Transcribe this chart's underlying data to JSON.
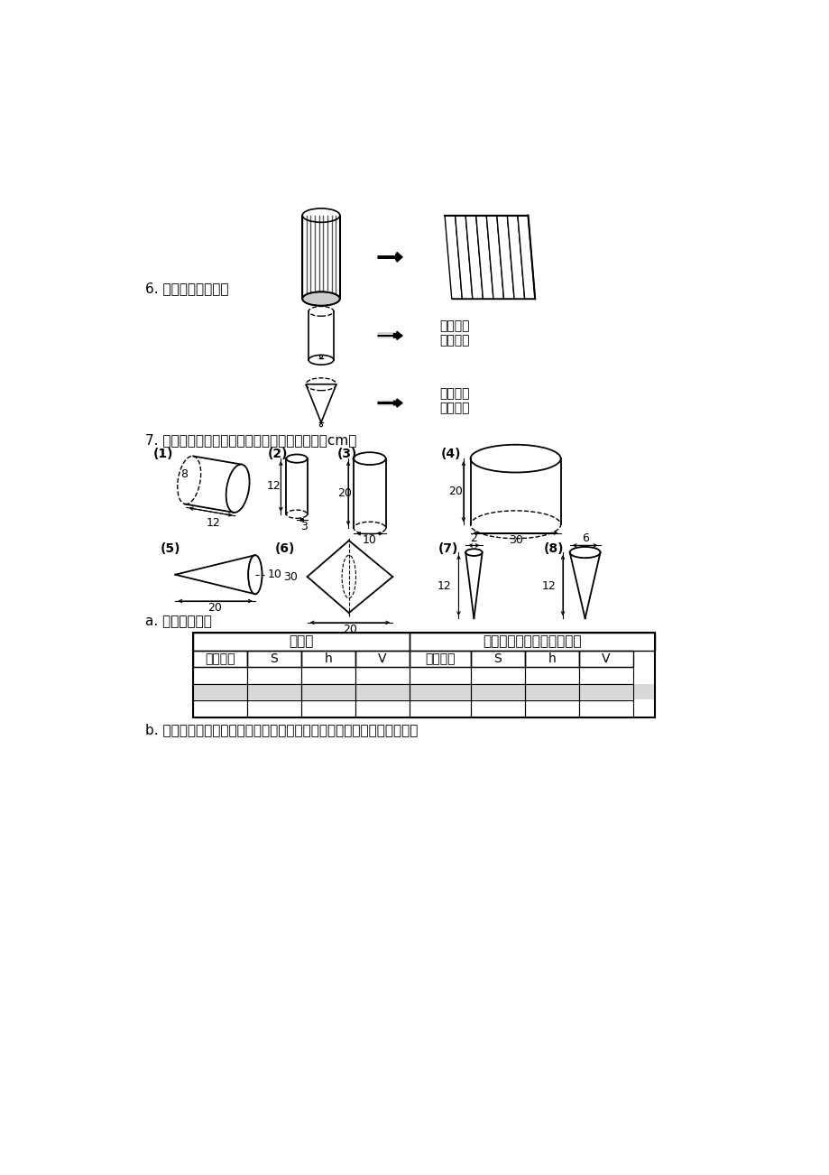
{
  "bg_color": "#ffffff",
  "label6": "6. 按照图意剪一剪。",
  "label7": "7. 仔细观察，研究圆柱和圆锥的关系。（单位：cm）",
  "label_a": "a. 按要求填表。",
  "label_b": "b. 把这些圆柱、圆锥按照体积之间的关系分成两类。（把序号填入圆内）",
  "table_header1": "圆柱体",
  "table_header2": "与圆柱体等底等高的圆锥体",
  "col_headers": [
    "图形序号",
    "S",
    "h",
    "V",
    "图形序号",
    "S",
    "h",
    "V"
  ],
  "arrow_text1": "沿粗线将\n侧面展开",
  "arrow_text2": "沿粗线将\n侧面展开"
}
